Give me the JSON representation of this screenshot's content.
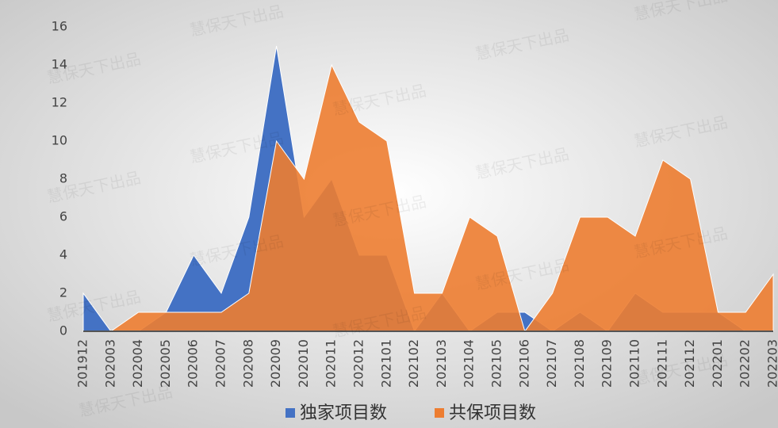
{
  "chart_data": {
    "type": "area",
    "watermark": "慧保天下出品",
    "categories": [
      "201912",
      "202003",
      "202004",
      "202005",
      "202006",
      "202007",
      "202008",
      "202009",
      "202010",
      "202011",
      "202012",
      "202101",
      "202102",
      "202103",
      "202104",
      "202105",
      "202106",
      "202107",
      "202108",
      "202109",
      "202110",
      "202111",
      "202112",
      "202201",
      "202202",
      "202203"
    ],
    "series": [
      {
        "name": "独家项目数",
        "color": "#4472c4",
        "values": [
          2,
          0,
          0,
          1,
          4,
          2,
          6,
          15,
          6,
          8,
          4,
          4,
          0,
          2,
          0,
          1,
          1,
          0,
          1,
          0,
          2,
          1,
          1,
          1,
          0,
          0
        ]
      },
      {
        "name": "共保项目数",
        "color": "#ed7d31",
        "values": [
          0,
          0,
          1,
          1,
          1,
          1,
          2,
          10,
          8,
          14,
          11,
          10,
          2,
          2,
          6,
          5,
          0,
          2,
          6,
          6,
          5,
          9,
          8,
          1,
          1,
          3
        ]
      }
    ],
    "ylim": [
      0,
      16
    ],
    "yticks": [
      0,
      2,
      4,
      6,
      8,
      10,
      12,
      14,
      16
    ],
    "legend": "bottom"
  }
}
